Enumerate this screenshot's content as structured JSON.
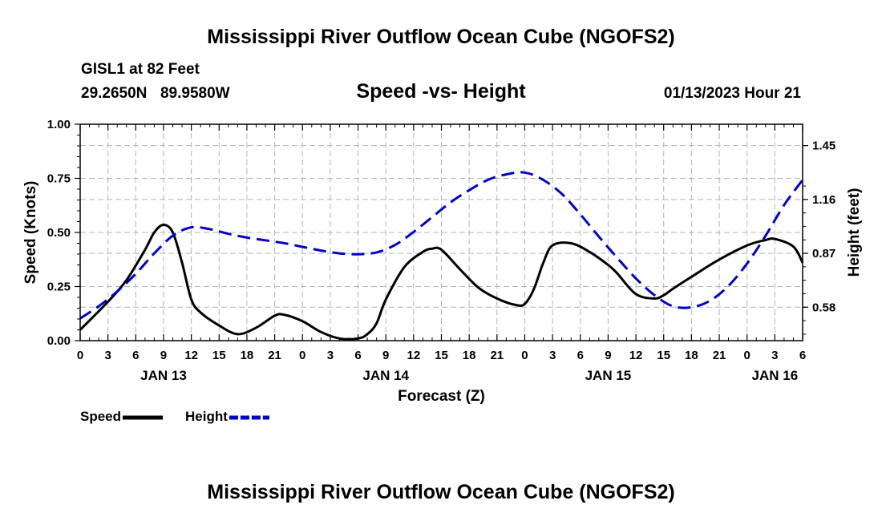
{
  "title": "Mississippi River Outflow Ocean Cube (NGOFS2)",
  "footer_title": "Mississippi River Outflow Ocean Cube (NGOFS2)",
  "station": "GISL1 at 82 Feet",
  "latitude": "29.2650N",
  "longitude": "89.9580W",
  "subtitle": "Speed -vs- Height",
  "datetime": "01/13/2023 Hour 21",
  "chart_data": {
    "type": "line",
    "title": "Speed -vs- Height",
    "xlabel": "Forecast (Z)",
    "ylabel": "Speed (Knots)",
    "y2label": "Height (feet)",
    "ylim": [
      0,
      1
    ],
    "y2lim": [
      0.4,
      1.565
    ],
    "yticks": [
      "0.00",
      "0.25",
      "0.50",
      "0.75",
      "1.00"
    ],
    "y2ticks": [
      "0.58",
      "0.87",
      "1.16",
      "1.45"
    ],
    "x_hours_range": [
      0,
      78
    ],
    "x_tick_labels": [
      "0",
      "3",
      "6",
      "9",
      "12",
      "15",
      "18",
      "21",
      "0",
      "3",
      "6",
      "9",
      "12",
      "15",
      "18",
      "21",
      "0",
      "3",
      "6",
      "9",
      "12",
      "15",
      "18",
      "21",
      "0",
      "3",
      "6"
    ],
    "date_labels": [
      {
        "label": "JAN 13",
        "hour": 9
      },
      {
        "label": "JAN 14",
        "hour": 33
      },
      {
        "label": "JAN 15",
        "hour": 57
      },
      {
        "label": "JAN 16",
        "hour": 75
      }
    ],
    "grid": true,
    "legend": [
      {
        "name": "Speed",
        "color": "#000000",
        "style": "solid"
      },
      {
        "name": "Height",
        "color": "#0000cc",
        "style": "dashed"
      }
    ],
    "series": [
      {
        "name": "Speed",
        "axis": "left",
        "color": "#000000",
        "style": "solid",
        "x": [
          0,
          3,
          5,
          7,
          8,
          9,
          10,
          11,
          12,
          13,
          15,
          17,
          19,
          21,
          22,
          24,
          26,
          28,
          30,
          31,
          32,
          33,
          35,
          37,
          38,
          39,
          41,
          43,
          45,
          47,
          48,
          49,
          50,
          51,
          53,
          55,
          57,
          58,
          60,
          62,
          63,
          64,
          66,
          69,
          72,
          74,
          75,
          77,
          78
        ],
        "y": [
          0.05,
          0.18,
          0.28,
          0.42,
          0.5,
          0.535,
          0.5,
          0.36,
          0.19,
          0.13,
          0.07,
          0.03,
          0.06,
          0.115,
          0.12,
          0.09,
          0.04,
          0.01,
          0.01,
          0.03,
          0.08,
          0.19,
          0.34,
          0.41,
          0.425,
          0.42,
          0.33,
          0.245,
          0.195,
          0.165,
          0.17,
          0.24,
          0.36,
          0.44,
          0.45,
          0.41,
          0.35,
          0.31,
          0.215,
          0.195,
          0.21,
          0.24,
          0.295,
          0.375,
          0.44,
          0.465,
          0.47,
          0.435,
          0.36
        ]
      },
      {
        "name": "Height",
        "axis": "right",
        "color": "#0000cc",
        "style": "dashed",
        "x": [
          0,
          2,
          4,
          6,
          8,
          10,
          12,
          14,
          16,
          18,
          20,
          22,
          24,
          26,
          28,
          30,
          32,
          34,
          36,
          38,
          40,
          42,
          44,
          46,
          48,
          50,
          52,
          54,
          56,
          58,
          60,
          62,
          64,
          66,
          68,
          70,
          72,
          74,
          76,
          78
        ],
        "y": [
          0.52,
          0.585,
          0.665,
          0.76,
          0.87,
          0.965,
          1.01,
          1.0,
          0.975,
          0.955,
          0.94,
          0.925,
          0.905,
          0.885,
          0.87,
          0.865,
          0.875,
          0.915,
          0.985,
          1.065,
          1.145,
          1.21,
          1.265,
          1.295,
          1.305,
          1.265,
          1.19,
          1.08,
          0.96,
          0.845,
          0.735,
          0.645,
          0.585,
          0.58,
          0.615,
          0.695,
          0.815,
          0.965,
          1.13,
          1.265
        ]
      }
    ]
  }
}
